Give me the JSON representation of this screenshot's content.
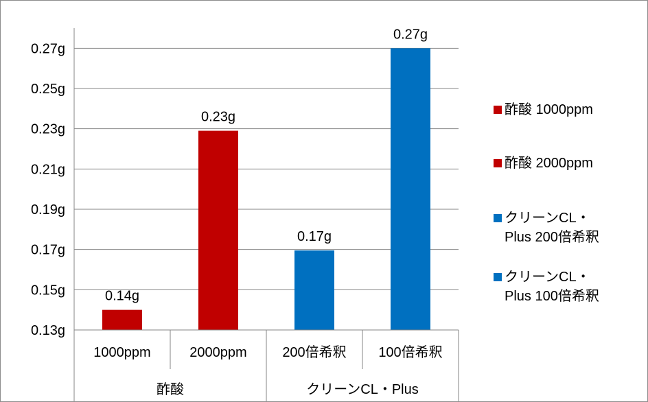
{
  "chart_data": {
    "type": "bar",
    "title": "",
    "xlabel": "",
    "ylabel": "",
    "ylim": [
      0.13,
      0.28
    ],
    "y_ticks": [
      "0.13g",
      "0.15g",
      "0.17g",
      "0.19g",
      "0.21g",
      "0.23g",
      "0.25g",
      "0.27g"
    ],
    "y_tick_values": [
      0.13,
      0.15,
      0.17,
      0.19,
      0.21,
      0.23,
      0.25,
      0.27
    ],
    "grid": true,
    "legend_position": "right",
    "categories": [
      "1000ppm",
      "2000ppm",
      "200倍希釈",
      "100倍希釈"
    ],
    "groups": [
      {
        "label": "酢酸",
        "span": 2
      },
      {
        "label": "クリーンCL・Plus",
        "span": 2
      }
    ],
    "series": [
      {
        "name": "酢酸 1000ppm",
        "legend_text": "酢酸 1000ppm",
        "value": 0.14,
        "data_label": "0.14g",
        "color": "#c00000"
      },
      {
        "name": "酢酸 2000ppm",
        "legend_text": "酢酸 2000ppm",
        "value": 0.229,
        "data_label": "0.23g",
        "color": "#c00000"
      },
      {
        "name": "クリーンCL・Plus 200倍希釈",
        "legend_text": "クリーンCL・\nPlus 200倍希釈",
        "value": 0.1695,
        "data_label": "0.17g",
        "color": "#0070c0"
      },
      {
        "name": "クリーンCL・Plus 100倍希釈",
        "legend_text": "クリーンCL・\nPlus 100倍希釈",
        "value": 0.27,
        "data_label": "0.27g",
        "color": "#0070c0"
      }
    ]
  }
}
